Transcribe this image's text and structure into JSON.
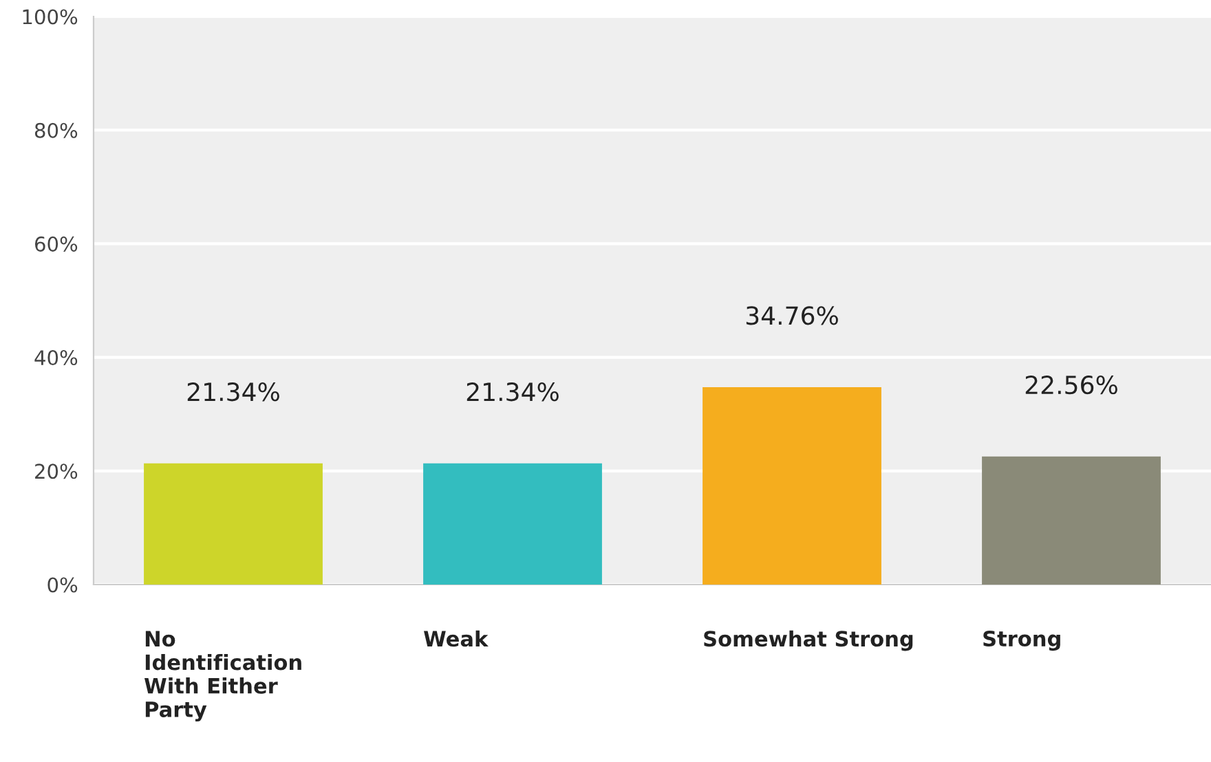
{
  "chart_data": {
    "type": "bar",
    "categories": [
      "No\nIdentification\nWith Either\nParty",
      "Weak",
      "Somewhat Strong",
      "Strong"
    ],
    "values": [
      21.34,
      21.34,
      34.76,
      22.56
    ],
    "colors": [
      "#cdd52a",
      "#33bdbf",
      "#f5ad1e",
      "#8a8a78"
    ],
    "value_labels": [
      "21.34%",
      "21.34%",
      "34.76%",
      "22.56%"
    ],
    "ylim": [
      0,
      100
    ],
    "yticks": [
      {
        "value": 0,
        "label": "0%"
      },
      {
        "value": 20,
        "label": "20%"
      },
      {
        "value": 40,
        "label": "40%"
      },
      {
        "value": 60,
        "label": "60%"
      },
      {
        "value": 80,
        "label": "80%"
      },
      {
        "value": 100,
        "label": "100%"
      }
    ],
    "grid": "y"
  }
}
